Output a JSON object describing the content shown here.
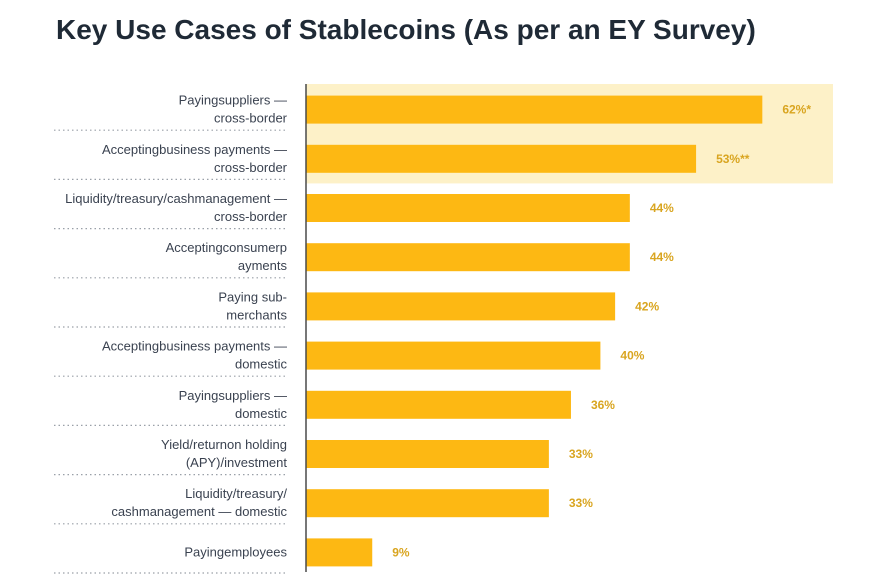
{
  "chart_data": {
    "type": "bar",
    "orientation": "horizontal",
    "title": "Key Use Cases of Stablecoins (As per an EY Survey)",
    "xlabel": "",
    "ylabel": "",
    "xlim": [
      0,
      100
    ],
    "grid": false,
    "legend": "none",
    "categories": [
      [
        "Payingsuppliers —",
        "cross-border"
      ],
      [
        "Acceptingbusiness payments —",
        "cross-border"
      ],
      [
        "Liquidity/treasury/cashmanagement —",
        "cross-border"
      ],
      [
        "Acceptingconsumerp",
        "ayments"
      ],
      [
        "Paying sub-",
        "merchants"
      ],
      [
        "Acceptingbusiness payments —",
        "domestic"
      ],
      [
        "Payingsuppliers —",
        "domestic"
      ],
      [
        "Yield/returnon holding",
        "(APY)/investment"
      ],
      [
        "Liquidity/treasury/",
        "cashmanagement — domestic"
      ],
      [
        "Payingemployees"
      ]
    ],
    "values": [
      62,
      53,
      44,
      44,
      42,
      40,
      36,
      33,
      33,
      9
    ],
    "value_labels": [
      "62%*",
      "53%**",
      "44%",
      "44%",
      "42%",
      "40%",
      "36%",
      "33%",
      "33%",
      "9%"
    ],
    "highlighted": [
      true,
      true,
      false,
      false,
      false,
      false,
      false,
      false,
      false,
      false
    ]
  },
  "colors": {
    "bar": "#fdb813",
    "highlight_band": "#fdf1c8",
    "value_label": "#d9a520",
    "axis": "#4a4a4a",
    "separator": "#9aa0a8"
  }
}
